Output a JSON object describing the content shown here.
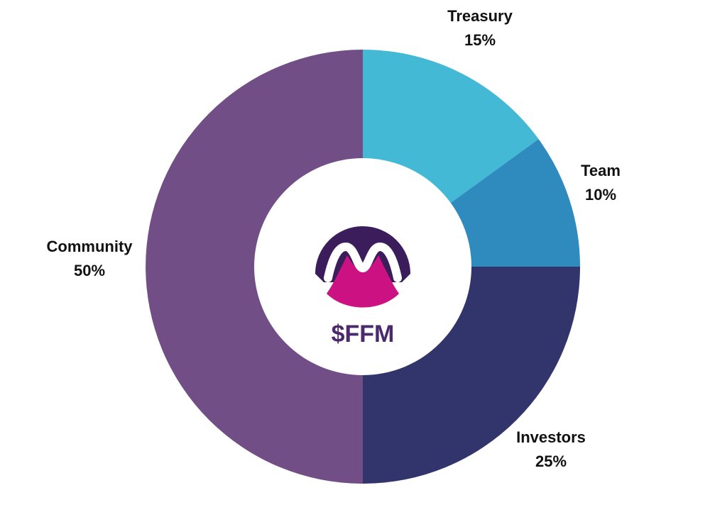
{
  "chart_data": {
    "type": "pie",
    "variant": "donut",
    "center_text": "$FFM",
    "slices": [
      {
        "label": "Treasury",
        "value": 15,
        "value_label": "15%",
        "color": "#43B9D6"
      },
      {
        "label": "Team",
        "value": 10,
        "value_label": "10%",
        "color": "#2F8BBE"
      },
      {
        "label": "Investors",
        "value": 25,
        "value_label": "25%",
        "color": "#32356C"
      },
      {
        "label": "Community",
        "value": 50,
        "value_label": "50%",
        "color": "#714E85"
      }
    ]
  },
  "logo": {
    "name": "ffm-logo-icon",
    "colors": {
      "dark": "#3B1D5C",
      "pink": "#CC1283",
      "white": "#FFFFFF"
    }
  },
  "colors": {
    "center_fill": "#FFFFFF",
    "center_text": "#4A2A6C",
    "label_text": "#111111"
  }
}
